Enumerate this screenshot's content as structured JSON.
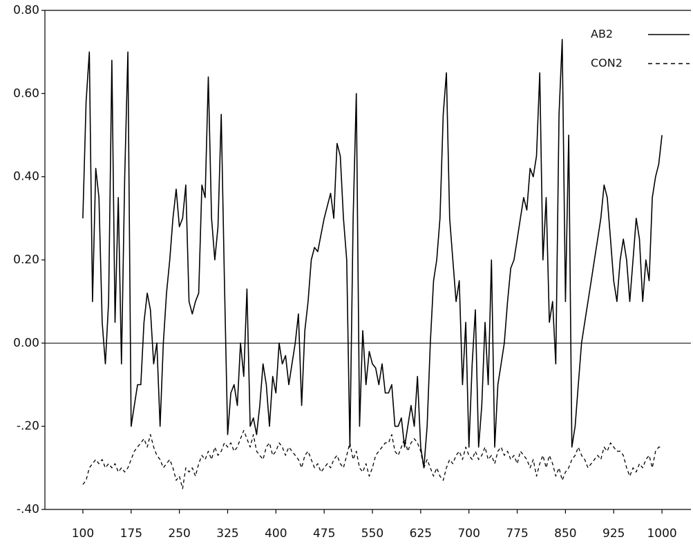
{
  "chart_data": {
    "type": "line",
    "x": [
      100,
      105,
      110,
      115,
      120,
      125,
      130,
      135,
      140,
      145,
      150,
      155,
      160,
      165,
      170,
      175,
      180,
      185,
      190,
      195,
      200,
      205,
      210,
      215,
      220,
      225,
      230,
      235,
      240,
      245,
      250,
      255,
      260,
      265,
      270,
      275,
      280,
      285,
      290,
      295,
      300,
      305,
      310,
      315,
      320,
      325,
      330,
      335,
      340,
      345,
      350,
      355,
      360,
      365,
      370,
      375,
      380,
      385,
      390,
      395,
      400,
      405,
      410,
      415,
      420,
      425,
      430,
      435,
      440,
      445,
      450,
      455,
      460,
      465,
      470,
      475,
      480,
      485,
      490,
      495,
      500,
      505,
      510,
      515,
      520,
      525,
      530,
      535,
      540,
      545,
      550,
      555,
      560,
      565,
      570,
      575,
      580,
      585,
      590,
      595,
      600,
      605,
      610,
      615,
      620,
      625,
      630,
      635,
      640,
      645,
      650,
      655,
      660,
      665,
      670,
      675,
      680,
      685,
      690,
      695,
      700,
      705,
      710,
      715,
      720,
      725,
      730,
      735,
      740,
      745,
      750,
      755,
      760,
      765,
      770,
      775,
      780,
      785,
      790,
      795,
      800,
      805,
      810,
      815,
      820,
      825,
      830,
      835,
      840,
      845,
      850,
      855,
      860,
      865,
      870,
      875,
      880,
      885,
      890,
      895,
      900,
      905,
      910,
      915,
      920,
      925,
      930,
      935,
      940,
      945,
      950,
      955,
      960,
      965,
      970,
      975,
      980,
      985,
      990,
      995,
      1000
    ],
    "series": [
      {
        "name": "AB2",
        "color": "#000000",
        "dash": false,
        "values": [
          0.3,
          0.58,
          0.7,
          0.1,
          0.42,
          0.35,
          0.05,
          -0.05,
          0.1,
          0.68,
          0.05,
          0.35,
          -0.05,
          0.4,
          0.7,
          -0.2,
          -0.15,
          -0.1,
          -0.1,
          0.05,
          0.12,
          0.08,
          -0.05,
          0,
          -0.2,
          0,
          0.12,
          0.2,
          0.3,
          0.37,
          0.28,
          0.3,
          0.38,
          0.1,
          0.07,
          0.1,
          0.12,
          0.38,
          0.35,
          0.64,
          0.3,
          0.2,
          0.28,
          0.55,
          0.15,
          -0.22,
          -0.12,
          -0.1,
          -0.15,
          0,
          -0.08,
          0.13,
          -0.2,
          -0.18,
          -0.22,
          -0.15,
          -0.05,
          -0.1,
          -0.2,
          -0.08,
          -0.12,
          0,
          -0.05,
          -0.03,
          -0.1,
          -0.05,
          0,
          0.07,
          -0.15,
          0.03,
          0.1,
          0.2,
          0.23,
          0.22,
          0.26,
          0.3,
          0.33,
          0.36,
          0.3,
          0.48,
          0.45,
          0.3,
          0.2,
          -0.25,
          0.3,
          0.6,
          -0.2,
          0.03,
          -0.1,
          -0.02,
          -0.05,
          -0.06,
          -0.1,
          -0.05,
          -0.12,
          -0.12,
          -0.1,
          -0.2,
          -0.2,
          -0.18,
          -0.25,
          -0.2,
          -0.15,
          -0.2,
          -0.08,
          -0.25,
          -0.3,
          -0.2,
          0,
          0.15,
          0.2,
          0.3,
          0.55,
          0.65,
          0.3,
          0.2,
          0.1,
          0.15,
          -0.1,
          0.05,
          -0.25,
          -0.05,
          0.08,
          -0.25,
          -0.15,
          0.05,
          -0.1,
          0.2,
          -0.25,
          -0.1,
          -0.05,
          0,
          0.1,
          0.18,
          0.2,
          0.25,
          0.3,
          0.35,
          0.32,
          0.42,
          0.4,
          0.45,
          0.65,
          0.2,
          0.35,
          0.05,
          0.1,
          -0.05,
          0.55,
          0.73,
          0.1,
          0.5,
          -0.25,
          -0.2,
          -0.1,
          0,
          0.05,
          0.1,
          0.15,
          0.2,
          0.25,
          0.3,
          0.38,
          0.35,
          0.25,
          0.15,
          0.1,
          0.2,
          0.25,
          0.2,
          0.1,
          0.2,
          0.3,
          0.25,
          0.1,
          0.2,
          0.15,
          0.35,
          0.4,
          0.43,
          0.5
        ]
      },
      {
        "name": "CON2",
        "color": "#000000",
        "dash": true,
        "values": [
          -0.34,
          -0.33,
          -0.3,
          -0.29,
          -0.28,
          -0.29,
          -0.28,
          -0.3,
          -0.29,
          -0.3,
          -0.29,
          -0.31,
          -0.3,
          -0.31,
          -0.3,
          -0.28,
          -0.26,
          -0.25,
          -0.24,
          -0.23,
          -0.25,
          -0.22,
          -0.25,
          -0.27,
          -0.28,
          -0.3,
          -0.29,
          -0.28,
          -0.3,
          -0.33,
          -0.32,
          -0.35,
          -0.3,
          -0.31,
          -0.3,
          -0.32,
          -0.29,
          -0.27,
          -0.28,
          -0.26,
          -0.28,
          -0.25,
          -0.27,
          -0.26,
          -0.24,
          -0.25,
          -0.24,
          -0.26,
          -0.25,
          -0.23,
          -0.21,
          -0.23,
          -0.25,
          -0.22,
          -0.26,
          -0.27,
          -0.28,
          -0.25,
          -0.24,
          -0.27,
          -0.26,
          -0.24,
          -0.25,
          -0.27,
          -0.25,
          -0.26,
          -0.27,
          -0.28,
          -0.3,
          -0.27,
          -0.26,
          -0.28,
          -0.3,
          -0.29,
          -0.31,
          -0.3,
          -0.29,
          -0.3,
          -0.28,
          -0.27,
          -0.29,
          -0.3,
          -0.27,
          -0.24,
          -0.28,
          -0.26,
          -0.3,
          -0.31,
          -0.29,
          -0.32,
          -0.3,
          -0.27,
          -0.26,
          -0.25,
          -0.24,
          -0.24,
          -0.22,
          -0.26,
          -0.27,
          -0.25,
          -0.23,
          -0.26,
          -0.24,
          -0.23,
          -0.24,
          -0.26,
          -0.3,
          -0.28,
          -0.3,
          -0.32,
          -0.3,
          -0.32,
          -0.33,
          -0.3,
          -0.28,
          -0.29,
          -0.27,
          -0.26,
          -0.28,
          -0.25,
          -0.27,
          -0.28,
          -0.26,
          -0.28,
          -0.27,
          -0.25,
          -0.28,
          -0.27,
          -0.29,
          -0.26,
          -0.25,
          -0.27,
          -0.26,
          -0.28,
          -0.27,
          -0.29,
          -0.26,
          -0.27,
          -0.28,
          -0.3,
          -0.28,
          -0.32,
          -0.29,
          -0.27,
          -0.3,
          -0.27,
          -0.29,
          -0.32,
          -0.3,
          -0.33,
          -0.31,
          -0.3,
          -0.28,
          -0.27,
          -0.25,
          -0.27,
          -0.28,
          -0.3,
          -0.29,
          -0.28,
          -0.27,
          -0.28,
          -0.25,
          -0.26,
          -0.24,
          -0.25,
          -0.26,
          -0.26,
          -0.27,
          -0.3,
          -0.32,
          -0.3,
          -0.31,
          -0.29,
          -0.3,
          -0.28,
          -0.27,
          -0.3,
          -0.26,
          -0.25,
          -0.25
        ]
      }
    ],
    "xlim": [
      41,
      1045
    ],
    "xticks": [
      100,
      175,
      250,
      325,
      400,
      475,
      550,
      625,
      700,
      775,
      850,
      925,
      1000
    ],
    "ylim": [
      -0.4,
      0.8
    ],
    "yticks": [
      {
        "value": 0.8,
        "label": "0.80"
      },
      {
        "value": 0.6,
        "label": "0.60"
      },
      {
        "value": 0.4,
        "label": "0.40"
      },
      {
        "value": 0.2,
        "label": "0.20"
      },
      {
        "value": 0,
        "label": "0.00"
      },
      {
        "value": -0.2,
        "label": "-.20"
      },
      {
        "value": -0.4,
        "label": "-.40"
      }
    ],
    "grid": false,
    "zero_line": true,
    "legend": "top-right"
  }
}
